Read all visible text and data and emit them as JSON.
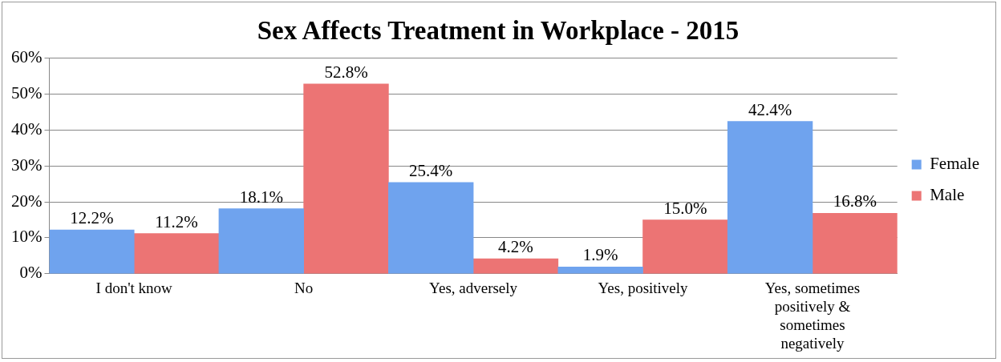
{
  "chart_data": {
    "type": "bar",
    "title": "Sex Affects Treatment in Workplace - 2015",
    "categories": [
      "I don't know",
      "No",
      "Yes, adversely",
      "Yes, positively",
      "Yes, sometimes positively & sometimes negatively"
    ],
    "series": [
      {
        "name": "Female",
        "color": "#6fa3ee",
        "values": [
          12.2,
          18.1,
          25.4,
          1.9,
          42.4
        ],
        "value_labels": [
          "12.2%",
          "18.1%",
          "25.4%",
          "1.9%",
          "42.4%"
        ]
      },
      {
        "name": "Male",
        "color": "#ec7474",
        "values": [
          11.2,
          52.8,
          4.2,
          15.0,
          16.8
        ],
        "value_labels": [
          "11.2%",
          "52.8%",
          "4.2%",
          "15.0%",
          "16.8%"
        ]
      }
    ],
    "ylim": [
      0,
      60
    ],
    "yticks": [
      {
        "value": 0,
        "label": "0%"
      },
      {
        "value": 10,
        "label": "10%"
      },
      {
        "value": 20,
        "label": "20%"
      },
      {
        "value": 30,
        "label": "30%"
      },
      {
        "value": 40,
        "label": "40%"
      },
      {
        "value": 50,
        "label": "50%"
      },
      {
        "value": 60,
        "label": "60%"
      }
    ],
    "grid": "y",
    "legend": "right"
  }
}
